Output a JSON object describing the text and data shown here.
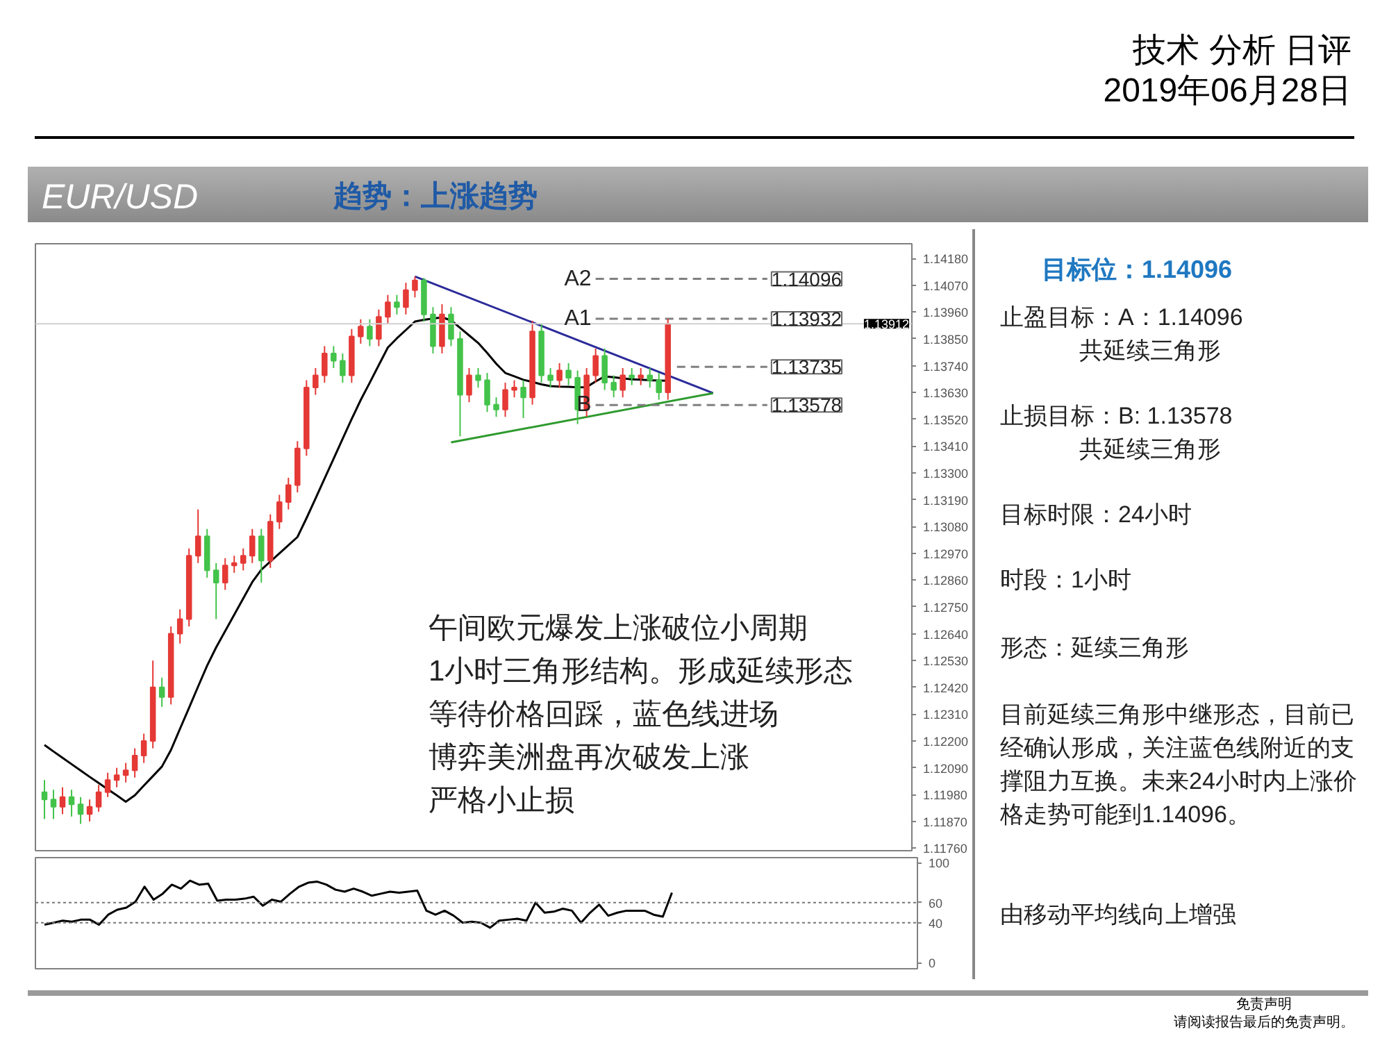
{
  "chart_data": [
    {
      "type": "candlestick",
      "title": "EUR/USD",
      "subtitle": "趋势：上涨趋势",
      "annotations": [
        "技术 分析 日评",
        "2019年06月28日",
        "午间欧元爆发上涨破位小周期",
        "1小时三角形结构。形成延续形态",
        "等待价格回踩，蓝色线进场",
        "博弈美洲盘再次破发上涨",
        "严格小止损",
        "免责声明",
        "请阅读报告最后的免责声明。"
      ],
      "categories": [
        null,
        null,
        null,
        null,
        null,
        null,
        null,
        null,
        null,
        null,
        null,
        null,
        null,
        null,
        null,
        null,
        null,
        null,
        null,
        null,
        null,
        null,
        null,
        null,
        null,
        null,
        null,
        null,
        null,
        null,
        null,
        null,
        null,
        null,
        null,
        null,
        null,
        null,
        null,
        null,
        null,
        null,
        null,
        null,
        null,
        null,
        null,
        null,
        null,
        null,
        null,
        null,
        null,
        null,
        null,
        null,
        null,
        null,
        null,
        null,
        null,
        null,
        null,
        null,
        null,
        null,
        null,
        null,
        null,
        null,
        null,
        null,
        null,
        null,
        null,
        null,
        null,
        null,
        null,
        null,
        null
      ],
      "ohlc": [
        [
          1.1199,
          1.1204,
          1.1188,
          1.1196
        ],
        [
          1.1196,
          1.12,
          1.1188,
          1.1193
        ],
        [
          1.1193,
          1.1201,
          1.119,
          1.1197
        ],
        [
          1.1197,
          1.12,
          1.1189,
          1.1194
        ],
        [
          1.1194,
          1.1197,
          1.1186,
          1.119
        ],
        [
          1.119,
          1.1196,
          1.1187,
          1.1193
        ],
        [
          1.1193,
          1.1202,
          1.1191,
          1.1199
        ],
        [
          1.1199,
          1.1207,
          1.1197,
          1.1204
        ],
        [
          1.1204,
          1.1209,
          1.1201,
          1.1206
        ],
        [
          1.1206,
          1.1211,
          1.1203,
          1.1208
        ],
        [
          1.1208,
          1.1217,
          1.1205,
          1.1214
        ],
        [
          1.1214,
          1.1223,
          1.1211,
          1.122
        ],
        [
          1.122,
          1.1253,
          1.1217,
          1.1242
        ],
        [
          1.1242,
          1.1246,
          1.1234,
          1.1238
        ],
        [
          1.1238,
          1.1267,
          1.1235,
          1.1264
        ],
        [
          1.1264,
          1.1274,
          1.126,
          1.127
        ],
        [
          1.127,
          1.1299,
          1.1267,
          1.1296
        ],
        [
          1.1296,
          1.1315,
          1.1293,
          1.1304
        ],
        [
          1.1304,
          1.1307,
          1.1287,
          1.129
        ],
        [
          1.129,
          1.1293,
          1.127,
          1.1285
        ],
        [
          1.1285,
          1.1295,
          1.1282,
          1.1292
        ],
        [
          1.1292,
          1.1296,
          1.1289,
          1.1293
        ],
        [
          1.1293,
          1.1299,
          1.129,
          1.1296
        ],
        [
          1.1296,
          1.1307,
          1.1293,
          1.1304
        ],
        [
          1.1304,
          1.1307,
          1.1285,
          1.1294
        ],
        [
          1.1294,
          1.1313,
          1.1291,
          1.131
        ],
        [
          1.131,
          1.1321,
          1.1307,
          1.1318
        ],
        [
          1.1318,
          1.1328,
          1.1315,
          1.1325
        ],
        [
          1.1325,
          1.1343,
          1.1322,
          1.134
        ],
        [
          1.134,
          1.1368,
          1.1337,
          1.1365
        ],
        [
          1.1365,
          1.1373,
          1.1362,
          1.137
        ],
        [
          1.137,
          1.1382,
          1.1367,
          1.1379
        ],
        [
          1.1379,
          1.1382,
          1.1373,
          1.1376
        ],
        [
          1.1376,
          1.1379,
          1.1367,
          1.137
        ],
        [
          1.137,
          1.1389,
          1.1367,
          1.1386
        ],
        [
          1.1386,
          1.1393,
          1.1383,
          1.139
        ],
        [
          1.139,
          1.1393,
          1.1382,
          1.1385
        ],
        [
          1.1385,
          1.1397,
          1.1382,
          1.1394
        ],
        [
          1.1394,
          1.1403,
          1.1391,
          1.14
        ],
        [
          1.14,
          1.1403,
          1.1395,
          1.1398
        ],
        [
          1.1398,
          1.1408,
          1.1395,
          1.1405
        ],
        [
          1.1405,
          1.14106,
          1.1402,
          1.1409
        ],
        [
          1.1409,
          1.141,
          1.1392,
          1.1395
        ],
        [
          1.1395,
          1.1398,
          1.1379,
          1.1382
        ],
        [
          1.1382,
          1.13992,
          1.1379,
          1.1395
        ],
        [
          1.1395,
          1.1398,
          1.1382,
          1.1385
        ],
        [
          1.1385,
          1.1388,
          1.1345,
          1.1362
        ],
        [
          1.1362,
          1.1373,
          1.1359,
          1.137
        ],
        [
          1.137,
          1.1373,
          1.1365,
          1.1368
        ],
        [
          1.1368,
          1.1371,
          1.1355,
          1.1358
        ],
        [
          1.1358,
          1.1361,
          1.1353,
          1.1356
        ],
        [
          1.1356,
          1.1367,
          1.1353,
          1.1364
        ],
        [
          1.1364,
          1.1368,
          1.1361,
          1.1365
        ],
        [
          1.1365,
          1.1368,
          1.13525,
          1.1361
        ],
        [
          1.1361,
          1.13924,
          1.1358,
          1.1388
        ],
        [
          1.1388,
          1.1391,
          1.1367,
          1.137
        ],
        [
          1.137,
          1.1373,
          1.1365,
          1.1368
        ],
        [
          1.1368,
          1.1375,
          1.1365,
          1.1372
        ],
        [
          1.1372,
          1.1375,
          1.1366,
          1.1369
        ],
        [
          1.1369,
          1.1372,
          1.135,
          1.1356
        ],
        [
          1.1356,
          1.1373,
          1.1353,
          1.137
        ],
        [
          1.137,
          1.1381,
          1.1367,
          1.1378
        ],
        [
          1.1378,
          1.1381,
          1.1364,
          1.1367
        ],
        [
          1.1367,
          1.137,
          1.1361,
          1.1364
        ],
        [
          1.1364,
          1.1373,
          1.1361,
          1.137
        ],
        [
          1.137,
          1.1373,
          1.1366,
          1.1369
        ],
        [
          1.1369,
          1.1373,
          1.1366,
          1.137
        ],
        [
          1.137,
          1.1373,
          1.1365,
          1.1368
        ],
        [
          1.1368,
          1.1371,
          1.136,
          1.1363
        ],
        [
          1.1363,
          1.13932,
          1.136,
          1.13912
        ],
        null,
        null,
        null,
        null,
        null,
        null,
        null,
        null,
        null,
        null,
        null
      ],
      "colors": [
        "#43c34a",
        "#43c34a",
        "#e53935",
        "#43c34a",
        "#43c34a",
        "#e53935",
        "#e53935",
        "#e53935",
        "#e53935",
        "#e53935",
        "#e53935",
        "#e53935",
        "#e53935",
        "#43c34a",
        "#e53935",
        "#e53935",
        "#e53935",
        "#e53935",
        "#43c34a",
        "#43c34a",
        "#e53935",
        "#e53935",
        "#e53935",
        "#e53935",
        "#43c34a",
        "#e53935",
        "#e53935",
        "#e53935",
        "#e53935",
        "#e53935",
        "#e53935",
        "#e53935",
        "#43c34a",
        "#43c34a",
        "#e53935",
        "#e53935",
        "#43c34a",
        "#e53935",
        "#e53935",
        "#43c34a",
        "#e53935",
        "#e53935",
        "#43c34a",
        "#43c34a",
        "#e53935",
        "#43c34a",
        "#43c34a",
        "#e53935",
        "#43c34a",
        "#43c34a",
        "#43c34a",
        "#e53935",
        "#e53935",
        "#43c34a",
        "#e53935",
        "#43c34a",
        "#43c34a",
        "#e53935",
        "#43c34a",
        "#43c34a",
        "#e53935",
        "#e53935",
        "#43c34a",
        "#43c34a",
        "#e53935",
        "#43c34a",
        "#e53935",
        "#43c34a",
        "#43c34a",
        "#e53935",
        null,
        null,
        null,
        null,
        null,
        null,
        null,
        null,
        null,
        null,
        null
      ],
      "series": [
        {
          "type": "line",
          "color": "#000000",
          "values": [
            1.12184,
            1.12157,
            1.12131,
            1.12105,
            1.12079,
            1.12053,
            1.12028,
            1.12002,
            1.11977,
            1.11951,
            1.11977,
            1.12017,
            1.12056,
            1.12095,
            1.12163,
            1.1225,
            1.12336,
            1.12423,
            1.12509,
            1.12584,
            1.12651,
            1.12718,
            1.12785,
            1.12852,
            1.12903,
            1.12936,
            1.1297,
            1.13003,
            1.13037,
            1.13114,
            1.13195,
            1.13277,
            1.13358,
            1.1344,
            1.13521,
            1.13599,
            1.1367,
            1.13742,
            1.13814,
            1.13852,
            1.13886,
            1.13921,
            1.13928,
            1.13933,
            1.13938,
            1.13926,
            1.13895,
            1.13864,
            1.13833,
            1.13792,
            1.13748,
            1.1371,
            1.13696,
            1.13682,
            1.13673,
            1.13663,
            1.13656,
            1.13654,
            1.13653,
            1.13651,
            1.13652,
            1.13675,
            1.13696,
            1.13692,
            1.13688,
            1.13684,
            1.13682,
            1.1368,
            1.13679,
            1.13678,
            null,
            null,
            null,
            null,
            null,
            null,
            null,
            null,
            null,
            null,
            null
          ]
        },
        {
          "type": "line",
          "color": "#2b2b9a",
          "values": [
            null,
            null,
            null,
            null,
            null,
            null,
            null,
            null,
            null,
            null,
            null,
            null,
            null,
            null,
            null,
            null,
            null,
            null,
            null,
            null,
            null,
            null,
            null,
            null,
            null,
            null,
            null,
            null,
            null,
            null,
            null,
            null,
            null,
            null,
            null,
            null,
            null,
            null,
            null,
            null,
            null,
            1.14106,
            null,
            null,
            null,
            null,
            null,
            null,
            null,
            null,
            null,
            null,
            null,
            null,
            null,
            null,
            null,
            null,
            null,
            null,
            null,
            null,
            null,
            null,
            null,
            null,
            null,
            null,
            null,
            null,
            null,
            null,
            null,
            null,
            1.13627,
            null,
            null,
            null,
            null,
            null,
            null
          ]
        },
        {
          "type": "line",
          "color": "#2e9a2e",
          "values": [
            null,
            null,
            null,
            null,
            null,
            null,
            null,
            null,
            null,
            null,
            null,
            null,
            null,
            null,
            null,
            null,
            null,
            null,
            null,
            null,
            null,
            null,
            null,
            null,
            null,
            null,
            null,
            null,
            null,
            null,
            null,
            null,
            null,
            null,
            null,
            null,
            null,
            null,
            null,
            null,
            null,
            null,
            null,
            null,
            null,
            1.13425,
            null,
            null,
            null,
            null,
            null,
            null,
            null,
            null,
            null,
            null,
            null,
            null,
            null,
            null,
            null,
            null,
            null,
            null,
            null,
            null,
            null,
            null,
            null,
            null,
            null,
            null,
            null,
            null,
            1.13627,
            null,
            null,
            null,
            null,
            null,
            null
          ]
        },
        {
          "type": "line",
          "color": "#808080",
          "line_style": "dashed",
          "values": [
            null,
            null,
            null,
            null,
            null,
            null,
            null,
            null,
            null,
            null,
            null,
            null,
            null,
            null,
            null,
            null,
            null,
            null,
            null,
            null,
            null,
            null,
            null,
            null,
            null,
            null,
            null,
            null,
            null,
            null,
            null,
            null,
            null,
            null,
            null,
            null,
            null,
            null,
            null,
            null,
            null,
            null,
            null,
            null,
            null,
            null,
            null,
            null,
            null,
            null,
            null,
            null,
            null,
            null,
            null,
            null,
            null,
            null,
            null,
            null,
            null,
            1.14096,
            null,
            null,
            null,
            null,
            null,
            null,
            null,
            null,
            null,
            null,
            null,
            null,
            null,
            null,
            null,
            null,
            null,
            null,
            1.14096
          ],
          "value_labels": [
            null,
            null,
            null,
            null,
            null,
            null,
            null,
            null,
            null,
            null,
            null,
            null,
            null,
            null,
            null,
            null,
            null,
            null,
            null,
            null,
            null,
            null,
            null,
            null,
            null,
            null,
            null,
            null,
            null,
            null,
            null,
            null,
            null,
            null,
            null,
            null,
            null,
            null,
            null,
            null,
            null,
            null,
            null,
            null,
            null,
            null,
            null,
            null,
            null,
            null,
            null,
            null,
            null,
            null,
            null,
            null,
            null,
            null,
            null,
            null,
            null,
            "A2",
            null,
            null,
            null,
            null,
            null,
            null,
            null,
            null,
            null,
            null,
            null,
            null,
            null,
            null,
            null,
            null,
            null,
            null,
            "1.14096"
          ]
        },
        {
          "type": "line",
          "color": "#808080",
          "line_style": "dashed",
          "values": [
            null,
            null,
            null,
            null,
            null,
            null,
            null,
            null,
            null,
            null,
            null,
            null,
            null,
            null,
            null,
            null,
            null,
            null,
            null,
            null,
            null,
            null,
            null,
            null,
            null,
            null,
            null,
            null,
            null,
            null,
            null,
            null,
            null,
            null,
            null,
            null,
            null,
            null,
            null,
            null,
            null,
            null,
            null,
            null,
            null,
            null,
            null,
            null,
            null,
            null,
            null,
            null,
            null,
            null,
            null,
            null,
            null,
            null,
            null,
            null,
            null,
            1.13932,
            null,
            null,
            null,
            null,
            null,
            null,
            null,
            null,
            null,
            null,
            null,
            null,
            null,
            null,
            null,
            null,
            null,
            null,
            1.13932
          ],
          "value_labels": [
            null,
            null,
            null,
            null,
            null,
            null,
            null,
            null,
            null,
            null,
            null,
            null,
            null,
            null,
            null,
            null,
            null,
            null,
            null,
            null,
            null,
            null,
            null,
            null,
            null,
            null,
            null,
            null,
            null,
            null,
            null,
            null,
            null,
            null,
            null,
            null,
            null,
            null,
            null,
            null,
            null,
            null,
            null,
            null,
            null,
            null,
            null,
            null,
            null,
            null,
            null,
            null,
            null,
            null,
            null,
            null,
            null,
            null,
            null,
            null,
            null,
            "A1",
            null,
            null,
            null,
            null,
            null,
            null,
            null,
            null,
            null,
            null,
            null,
            null,
            null,
            null,
            null,
            null,
            null,
            null,
            "1.13932"
          ]
        },
        {
          "type": "line",
          "color": "#808080",
          "line_style": "dashed",
          "values": [
            null,
            null,
            null,
            null,
            null,
            null,
            null,
            null,
            null,
            null,
            null,
            null,
            null,
            null,
            null,
            null,
            null,
            null,
            null,
            null,
            null,
            null,
            null,
            null,
            null,
            null,
            null,
            null,
            null,
            null,
            null,
            null,
            null,
            null,
            null,
            null,
            null,
            null,
            null,
            null,
            null,
            null,
            null,
            null,
            null,
            null,
            null,
            null,
            null,
            null,
            null,
            null,
            null,
            null,
            null,
            null,
            null,
            null,
            null,
            null,
            null,
            null,
            null,
            null,
            null,
            null,
            null,
            null,
            null,
            null,
            1.13735,
            null,
            null,
            null,
            null,
            null,
            null,
            null,
            null,
            null,
            1.13735
          ],
          "value_labels": [
            null,
            null,
            null,
            null,
            null,
            null,
            null,
            null,
            null,
            null,
            null,
            null,
            null,
            null,
            null,
            null,
            null,
            null,
            null,
            null,
            null,
            null,
            null,
            null,
            null,
            null,
            null,
            null,
            null,
            null,
            null,
            null,
            null,
            null,
            null,
            null,
            null,
            null,
            null,
            null,
            null,
            null,
            null,
            null,
            null,
            null,
            null,
            null,
            null,
            null,
            null,
            null,
            null,
            null,
            null,
            null,
            null,
            null,
            null,
            null,
            null,
            null,
            null,
            null,
            null,
            null,
            null,
            null,
            null,
            null,
            null,
            null,
            null,
            null,
            null,
            null,
            null,
            null,
            null,
            null,
            "1.13735"
          ]
        },
        {
          "type": "line",
          "color": "#808080",
          "line_style": "dashed",
          "values": [
            null,
            null,
            null,
            null,
            null,
            null,
            null,
            null,
            null,
            null,
            null,
            null,
            null,
            null,
            null,
            null,
            null,
            null,
            null,
            null,
            null,
            null,
            null,
            null,
            null,
            null,
            null,
            null,
            null,
            null,
            null,
            null,
            null,
            null,
            null,
            null,
            null,
            null,
            null,
            null,
            null,
            null,
            null,
            null,
            null,
            null,
            null,
            null,
            null,
            null,
            null,
            null,
            null,
            null,
            null,
            null,
            null,
            null,
            null,
            null,
            null,
            1.13578,
            null,
            null,
            null,
            null,
            null,
            null,
            null,
            null,
            null,
            null,
            null,
            null,
            null,
            null,
            null,
            null,
            null,
            null,
            1.13578
          ],
          "value_labels": [
            null,
            null,
            null,
            null,
            null,
            null,
            null,
            null,
            null,
            null,
            null,
            null,
            null,
            null,
            null,
            null,
            null,
            null,
            null,
            null,
            null,
            null,
            null,
            null,
            null,
            null,
            null,
            null,
            null,
            null,
            null,
            null,
            null,
            null,
            null,
            null,
            null,
            null,
            null,
            null,
            null,
            null,
            null,
            null,
            null,
            null,
            null,
            null,
            null,
            null,
            null,
            null,
            null,
            null,
            null,
            null,
            null,
            null,
            null,
            null,
            null,
            "B",
            null,
            null,
            null,
            null,
            null,
            null,
            null,
            null,
            null,
            null,
            null,
            null,
            null,
            null,
            null,
            null,
            null,
            null,
            "1.13578"
          ]
        }
      ],
      "ref_lines": [
        {
          "axis": "y",
          "value": 1.13912,
          "label": "1.13912",
          "color": "#d0d0d0"
        }
      ],
      "ylim": [
        1.1175,
        1.1424
      ],
      "yticks": [
        {
          "value": 1.1418,
          "label": "1.14180"
        },
        {
          "value": 1.1407,
          "label": "1.14070"
        },
        {
          "value": 1.1396,
          "label": "1.13960"
        },
        {
          "value": 1.1385,
          "label": "1.13850"
        },
        {
          "value": 1.1374,
          "label": "1.13740"
        },
        {
          "value": 1.1363,
          "label": "1.13630"
        },
        {
          "value": 1.1352,
          "label": "1.13520"
        },
        {
          "value": 1.1341,
          "label": "1.13410"
        },
        {
          "value": 1.133,
          "label": "1.13300"
        },
        {
          "value": 1.1319,
          "label": "1.13190"
        },
        {
          "value": 1.1308,
          "label": "1.13080"
        },
        {
          "value": 1.1297,
          "label": "1.12970"
        },
        {
          "value": 1.1286,
          "label": "1.12860"
        },
        {
          "value": 1.1275,
          "label": "1.12750"
        },
        {
          "value": 1.1264,
          "label": "1.12640"
        },
        {
          "value": 1.1253,
          "label": "1.12530"
        },
        {
          "value": 1.1242,
          "label": "1.12420"
        },
        {
          "value": 1.1231,
          "label": "1.12310"
        },
        {
          "value": 1.122,
          "label": "1.12200"
        },
        {
          "value": 1.1209,
          "label": "1.12090"
        },
        {
          "value": 1.1198,
          "label": "1.11980"
        },
        {
          "value": 1.1187,
          "label": "1.11870"
        },
        {
          "value": 1.1176,
          "label": "1.11760"
        }
      ],
      "tick_labels": "y"
    },
    {
      "type": "line",
      "categories": [
        null,
        null,
        null,
        null,
        null,
        null,
        null,
        null,
        null,
        null,
        null,
        null,
        null,
        null,
        null,
        null,
        null,
        null,
        null,
        null,
        null,
        null,
        null,
        null,
        null,
        null,
        null,
        null,
        null,
        null,
        null,
        null,
        null,
        null,
        null,
        null,
        null,
        null,
        null,
        null,
        null,
        null,
        null,
        null,
        null,
        null,
        null,
        null,
        null,
        null,
        null,
        null,
        null,
        null,
        null,
        null,
        null,
        null,
        null,
        null,
        null,
        null,
        null,
        null,
        null,
        null,
        null,
        null,
        null,
        null,
        null,
        null,
        null,
        null,
        null,
        null,
        null,
        null,
        null,
        null,
        null
      ],
      "series": [
        {
          "color": "#000000",
          "values": [
            38,
            40,
            42,
            41,
            43,
            43,
            38,
            48,
            53,
            55,
            61,
            76,
            63,
            69,
            78,
            74,
            82,
            78,
            79,
            62,
            63,
            63,
            64,
            66,
            57,
            63,
            61,
            69,
            76,
            80,
            81,
            78,
            73,
            71,
            74,
            71,
            67,
            69,
            71,
            70,
            71,
            72,
            52,
            48,
            52,
            47,
            40,
            41,
            40,
            35,
            42,
            43,
            44,
            42,
            60,
            50,
            51,
            54,
            52,
            40,
            50,
            58,
            47,
            50,
            52,
            52,
            52,
            48,
            46,
            70,
            null,
            null,
            null,
            null,
            null,
            null,
            null,
            null,
            null,
            null,
            null
          ]
        }
      ],
      "ref_lines": [
        {
          "axis": "y",
          "value": 60,
          "color": "#777777",
          "line_style": "dotted"
        },
        {
          "axis": "y",
          "value": 40,
          "color": "#777777",
          "line_style": "dotted"
        }
      ],
      "ylim": [
        -6,
        105
      ],
      "yticks": [
        0,
        40,
        60,
        100
      ],
      "tick_labels": "y"
    },
    {
      "type": "other",
      "title": "目标位：1.14096",
      "annotations": [
        "止盈目标：A：1.14096",
        "共延续三角形",
        "止损目标：B: 1.13578",
        "共延续三角形",
        "目标时限：24小时",
        "时段：1小时",
        "形态：延续三角形",
        "目前延续三角形中继形态，目前已经确认形成，关注蓝色线附近的支撑阻力互换。未来24小时内上涨价格走势可能到1.14096。",
        "由移动平均线向上增强"
      ]
    }
  ]
}
